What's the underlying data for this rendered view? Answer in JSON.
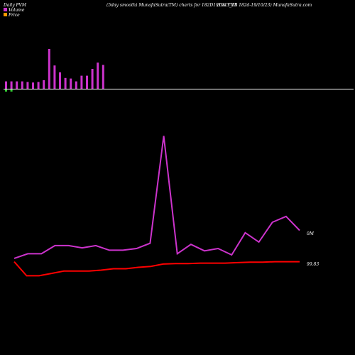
{
  "header": {
    "left": "Daily PVM",
    "center": "(5day smooth) MunafaSutra(TM) charts for 182D191023_TB",
    "right": "(Goi  Tbill 182d-19/10/23) MunafaSutra.com"
  },
  "legend": [
    {
      "label": "Volume",
      "color": "#cc33cc"
    },
    {
      "label": "Price",
      "color": "#ff9900"
    }
  ],
  "colors": {
    "background": "#000000",
    "volume_bar": "#cc33cc",
    "volume_negative_bar": "#33cc33",
    "volume_line": "#cc33cc",
    "price_line": "#ff0000",
    "baseline": "#ffffff"
  },
  "chart_data": [
    {
      "type": "bar",
      "name": "volume-bars",
      "values": [
        1.3,
        1.3,
        1.3,
        1.3,
        1.2,
        1.1,
        1.2,
        1.5,
        7,
        4.1,
        2.9,
        1.9,
        1.8,
        1.3,
        2.3,
        2.3,
        3.5,
        4.6,
        4.2
      ],
      "negative_mask": [
        true,
        true,
        false,
        false,
        false,
        false,
        false,
        false,
        false,
        false,
        false,
        false,
        false,
        false,
        false,
        false,
        false,
        false,
        false
      ]
    },
    {
      "type": "line",
      "series": [
        {
          "values": [
            2.5,
            2.9,
            2.9,
            3.6,
            3.6,
            3.4,
            3.6,
            3.2,
            3.2,
            3.35,
            3.8,
            13,
            2.9,
            3.7,
            3.15,
            3.35,
            2.8,
            4.7,
            3.9,
            5.6,
            6.1,
            4.9
          ]
        },
        {
          "values": [
            99.83,
            99.8,
            99.8,
            99.805,
            99.81,
            99.81,
            99.81,
            99.812,
            99.815,
            99.815,
            99.818,
            99.82,
            99.825,
            99.826,
            99.826,
            99.827,
            99.827,
            99.827,
            99.828,
            99.829,
            99.829,
            99.83,
            99.83,
            99.83
          ]
        }
      ],
      "labels": {
        "volume_last": "0M",
        "price_last": "99.83"
      }
    }
  ]
}
